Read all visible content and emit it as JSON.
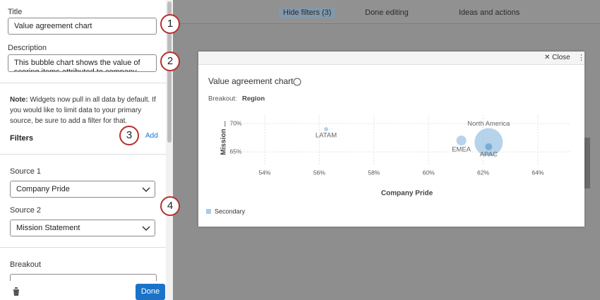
{
  "toolbar": {
    "hide_filters": "Hide filters (3)",
    "done_editing": "Done editing",
    "ideas": "Ideas and actions"
  },
  "sidebar": {
    "title_label": "Title",
    "title_value": "Value agreement chart",
    "description_label": "Description",
    "description_value": "This bubble chart shows the value of scoring items attributed to company pride",
    "note_bold": "Note:",
    "note_text": "Widgets now pull in all data by default. If you would like to limit data to your primary source, be sure to add a filter for that.",
    "filters": "Filters",
    "add": "Add",
    "source1_label": "Source 1",
    "source1_value": "Company Pride",
    "source2_label": "Source 2",
    "source2_value": "Mission Statement",
    "breakout_label": "Breakout",
    "done": "Done"
  },
  "callouts": [
    "1",
    "2",
    "3",
    "4"
  ],
  "modal": {
    "close": "Close",
    "breakout_label": "Breakout:",
    "breakout_value": "Region"
  },
  "chart_data": {
    "type": "scatter",
    "title": "Value agreement chart",
    "x_label": "Company Pride",
    "y_label": "Mission ...",
    "series": [
      {
        "name": "Secondary",
        "color": "#a9cbe8",
        "labels": [
          "LATAM",
          "EMEA",
          "North America",
          "APAC"
        ],
        "x": [
          56.25,
          61.2,
          62.2,
          62.2
        ],
        "values": [
          69,
          67,
          66.7,
          65.9
        ],
        "sizes": [
          9,
          49,
          400,
          25
        ],
        "colors": [
          "#a9cbe8",
          "#a9cbe8",
          "#a9cbe8",
          "#6fa6d6"
        ]
      }
    ],
    "xlim": [
      53.2,
      64.7
    ],
    "ylim": [
      63.4,
      71.5
    ],
    "xticks": [
      {
        "value": 54,
        "label": "54%"
      },
      {
        "value": 56,
        "label": "56%"
      },
      {
        "value": 58,
        "label": "58%"
      },
      {
        "value": 60,
        "label": "60%"
      },
      {
        "value": 62,
        "label": "62%"
      },
      {
        "value": 64,
        "label": "64%"
      }
    ],
    "yticks": [
      {
        "value": 65,
        "label": "65%"
      },
      {
        "value": 70,
        "label": "70%"
      }
    ],
    "grid": true
  }
}
